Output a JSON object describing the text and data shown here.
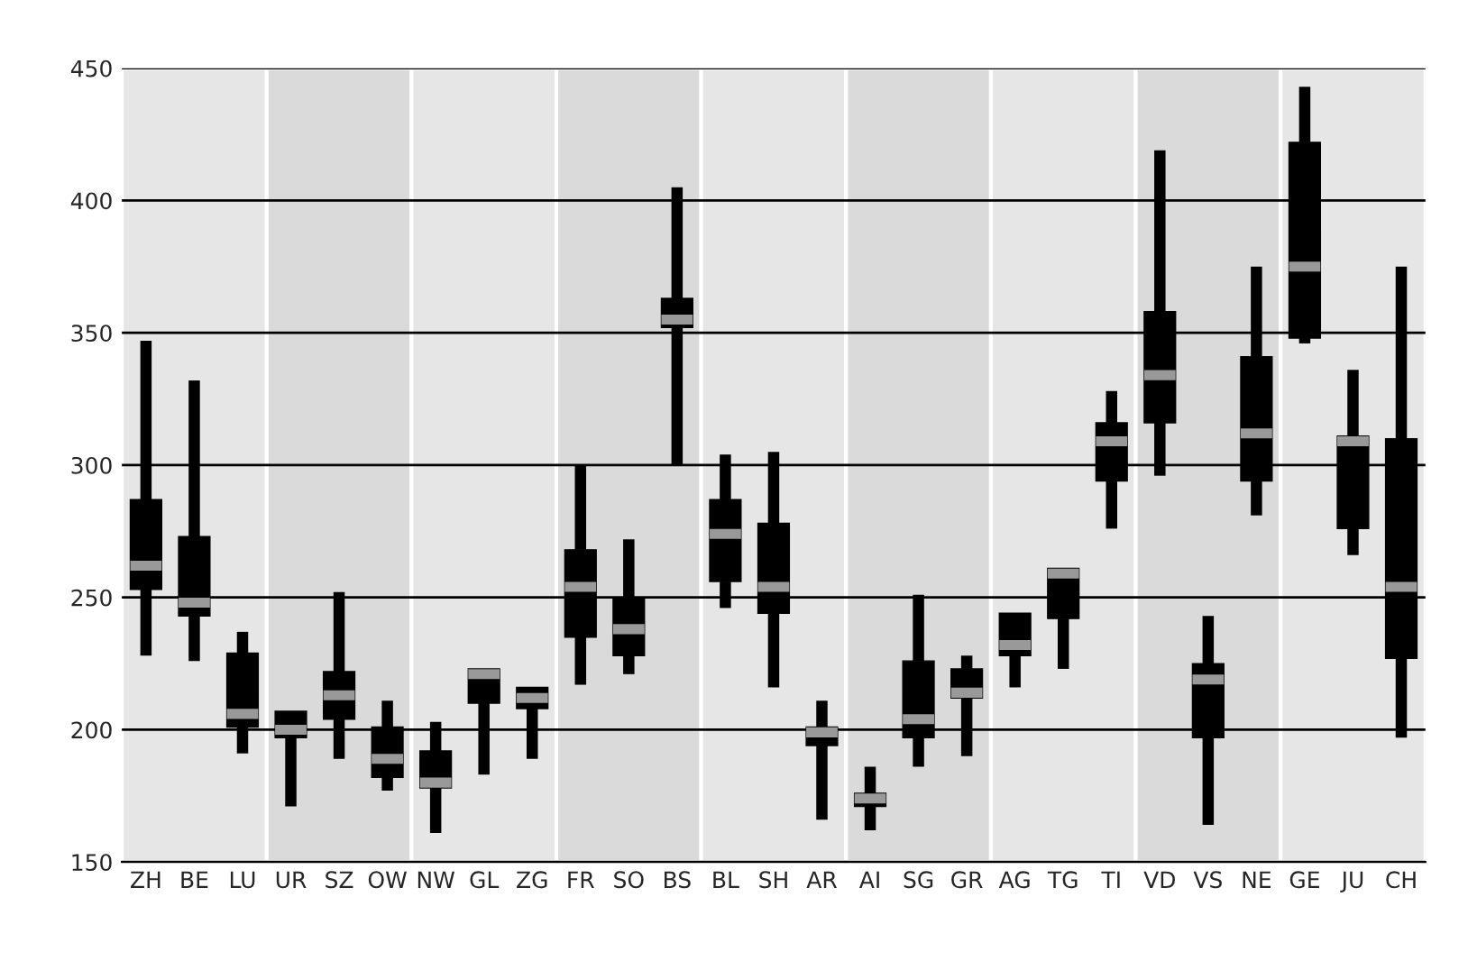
{
  "chart_data": {
    "type": "box",
    "categories": [
      "ZH",
      "BE",
      "LU",
      "UR",
      "SZ",
      "OW",
      "NW",
      "GL",
      "ZG",
      "FR",
      "SO",
      "BS",
      "BL",
      "SH",
      "AR",
      "AI",
      "SG",
      "GR",
      "AG",
      "TG",
      "TI",
      "VD",
      "VS",
      "NE",
      "GE",
      "JU",
      "CH"
    ],
    "color": "#000000",
    "boxes": [
      {
        "low": 228,
        "q1": 253,
        "median": 262,
        "q3": 287,
        "high": 347
      },
      {
        "low": 226,
        "q1": 243,
        "median": 248,
        "q3": 273,
        "high": 332
      },
      {
        "low": 191,
        "q1": 201,
        "median": 206,
        "q3": 229,
        "high": 237
      },
      {
        "low": 171,
        "q1": 197,
        "median": 200,
        "q3": 207,
        "high": 207
      },
      {
        "low": 189,
        "q1": 204,
        "median": 213,
        "q3": 222,
        "high": 252
      },
      {
        "low": 177,
        "q1": 182,
        "median": 189,
        "q3": 201,
        "high": 211
      },
      {
        "low": 161,
        "q1": 178,
        "median": 180,
        "q3": 192,
        "high": 203
      },
      {
        "low": 183,
        "q1": 210,
        "median": 221,
        "q3": 223,
        "high": 223
      },
      {
        "low": 189,
        "q1": 208,
        "median": 212,
        "q3": 216,
        "high": 216
      },
      {
        "low": 217,
        "q1": 235,
        "median": 254,
        "q3": 268,
        "high": 300
      },
      {
        "low": 221,
        "q1": 228,
        "median": 238,
        "q3": 250,
        "high": 272
      },
      {
        "low": 300,
        "q1": 352,
        "median": 355,
        "q3": 363,
        "high": 405
      },
      {
        "low": 246,
        "q1": 256,
        "median": 274,
        "q3": 287,
        "high": 304
      },
      {
        "low": 216,
        "q1": 244,
        "median": 254,
        "q3": 278,
        "high": 305
      },
      {
        "low": 166,
        "q1": 194,
        "median": 199,
        "q3": 201,
        "high": 211
      },
      {
        "low": 162,
        "q1": 171,
        "median": 174,
        "q3": 176,
        "high": 186
      },
      {
        "low": 186,
        "q1": 197,
        "median": 204,
        "q3": 226,
        "high": 251
      },
      {
        "low": 190,
        "q1": 212,
        "median": 214,
        "q3": 223,
        "high": 228
      },
      {
        "low": 216,
        "q1": 228,
        "median": 232,
        "q3": 244,
        "high": 244
      },
      {
        "low": 223,
        "q1": 242,
        "median": 259,
        "q3": 261,
        "high": 261
      },
      {
        "low": 276,
        "q1": 294,
        "median": 309,
        "q3": 316,
        "high": 328
      },
      {
        "low": 296,
        "q1": 316,
        "median": 334,
        "q3": 358,
        "high": 419
      },
      {
        "low": 164,
        "q1": 197,
        "median": 219,
        "q3": 225,
        "high": 243
      },
      {
        "low": 281,
        "q1": 294,
        "median": 312,
        "q3": 341,
        "high": 375
      },
      {
        "low": 346,
        "q1": 348,
        "median": 375,
        "q3": 422,
        "high": 443
      },
      {
        "low": 266,
        "q1": 276,
        "median": 309,
        "q3": 311,
        "high": 336
      },
      {
        "low": 197,
        "q1": 227,
        "median": 254,
        "q3": 310,
        "high": 375
      }
    ],
    "ylim": [
      150,
      450
    ],
    "yticks": [
      150,
      200,
      250,
      300,
      350,
      400,
      450
    ],
    "grid": "y"
  }
}
